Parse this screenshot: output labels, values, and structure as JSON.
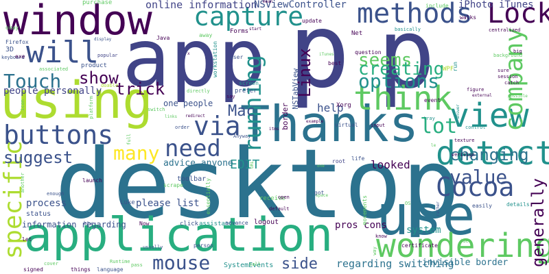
{
  "palette": {
    "dark_purple": "#440154",
    "indigo": "#3b528b",
    "slate_blue": "#414487",
    "teal": "#21918c",
    "dark_teal": "#2c728e",
    "sea_green": "#28ae80",
    "green": "#5ec962",
    "lime": "#addc30",
    "yellow": "#fde725"
  },
  "words": [
    {
      "t": "desktop",
      "c": "#2c728e"
    },
    {
      "t": "p",
      "c": "#414487"
    },
    {
      "t": "p",
      "c": "#414487"
    },
    {
      "t": "app",
      "c": "#414487"
    },
    {
      "t": "using",
      "c": "#addc30"
    },
    {
      "t": "application",
      "c": "#28ae80"
    },
    {
      "t": "window",
      "c": "#440154"
    },
    {
      "t": "Thanks",
      "c": "#2c728e"
    },
    {
      "t": "use",
      "c": "#2c728e"
    },
    {
      "t": "wondering",
      "c": "#5ec962"
    },
    {
      "t": "view",
      "c": "#21918c"
    },
    {
      "t": "detect",
      "c": "#21918c"
    },
    {
      "t": "methods",
      "c": "#3b528b"
    },
    {
      "t": "capture",
      "c": "#21918c"
    },
    {
      "t": "think",
      "c": "#5ec962"
    },
    {
      "t": "buttons",
      "c": "#3b528b"
    },
    {
      "t": "Cocoa",
      "c": "#3b528b"
    },
    {
      "t": "Lock",
      "c": "#440154"
    },
    {
      "t": "will",
      "c": "#3b528b"
    },
    {
      "t": "via",
      "c": "#3b528b"
    },
    {
      "t": "company",
      "c": "#5ec962"
    },
    {
      "t": "specific",
      "c": "#addc30"
    },
    {
      "t": "need",
      "c": "#3b528b"
    },
    {
      "t": "running",
      "c": "#21918c"
    },
    {
      "t": "many",
      "c": "#fde725"
    },
    {
      "t": "mouse",
      "c": "#3b528b"
    },
    {
      "t": "lot",
      "c": "#28ae80"
    },
    {
      "t": "seems",
      "c": "#5ec962"
    },
    {
      "t": "creating",
      "c": "#28ae80"
    },
    {
      "t": "options",
      "c": "#21918c"
    },
    {
      "t": "Touch",
      "c": "#2c728e"
    },
    {
      "t": "show",
      "c": "#440154"
    },
    {
      "t": "value",
      "c": "#3b528b"
    },
    {
      "t": "changing",
      "c": "#2c728e"
    },
    {
      "t": "suggest",
      "c": "#3b528b"
    },
    {
      "t": "trick",
      "c": "#440154"
    },
    {
      "t": "generally",
      "c": "#440154"
    },
    {
      "t": "Linux",
      "c": "#440154"
    },
    {
      "t": "Mac",
      "c": "#3b528b"
    },
    {
      "t": "side",
      "c": "#3b528b"
    },
    {
      "t": "EDIT",
      "c": "#21918c"
    },
    {
      "t": "looked",
      "c": "#440154"
    },
    {
      "t": "help",
      "c": "#3b528b"
    },
    {
      "t": "online information",
      "c": "#414487"
    },
    {
      "t": "NSViewController",
      "c": "#3b528b"
    },
    {
      "t": "iPhoto iTunes",
      "c": "#414487"
    },
    {
      "t": "regarding switching",
      "c": "#2c728e"
    },
    {
      "t": "invisible border",
      "c": "#2c728e"
    },
    {
      "t": "system",
      "c": "#21918c"
    },
    {
      "t": "process",
      "c": "#3b528b"
    },
    {
      "t": "please list",
      "c": "#3b528b"
    },
    {
      "t": "information regarding",
      "c": "#3b528b"
    },
    {
      "t": "pros cons",
      "c": "#440154"
    },
    {
      "t": "people personally",
      "c": "#414487"
    },
    {
      "t": "one people",
      "c": "#3b528b"
    },
    {
      "t": "advice anyone",
      "c": "#2c728e"
    },
    {
      "t": "SystemEvents",
      "c": "#21918c"
    },
    {
      "t": "NSTabView",
      "c": "#3b528b"
    },
    {
      "t": "border",
      "c": "#440154"
    },
    {
      "t": "Xorg",
      "c": "#440154"
    },
    {
      "t": "Luke",
      "c": "#3b528b"
    },
    {
      "t": "toolbar",
      "c": "#3b528b"
    },
    {
      "t": "scrape",
      "c": "#5ec962"
    },
    {
      "t": "logout",
      "c": "#440154"
    },
    {
      "t": "status",
      "c": "#3b528b"
    },
    {
      "t": "product",
      "c": "#3b528b"
    },
    {
      "t": "Forms",
      "c": "#440154"
    },
    {
      "t": "assistance",
      "c": "#21918c"
    },
    {
      "t": "advance",
      "c": "#3b528b"
    },
    {
      "t": "click",
      "c": "#3b528b"
    },
    {
      "t": "receive",
      "c": "#5ec962"
    },
    {
      "t": "WPF",
      "c": "#addc30"
    },
    {
      "t": "Net",
      "c": "#440154"
    },
    {
      "t": "workstation",
      "c": "#21918c"
    },
    {
      "t": "screen",
      "c": "#21918c"
    },
    {
      "t": "prefer",
      "c": "#3b528b"
    },
    {
      "t": "user",
      "c": "#3b528b"
    },
    {
      "t": "Firefox",
      "c": "#3b528b"
    },
    {
      "t": "keyboard",
      "c": "#3b528b"
    },
    {
      "t": "3D",
      "c": "#3b528b"
    },
    {
      "t": "exe",
      "c": "#440154"
    },
    {
      "t": "okay",
      "c": "#5ec962"
    },
    {
      "t": "purchase",
      "c": "#5ec962"
    },
    {
      "t": "update",
      "c": "#440154"
    },
    {
      "t": "walks",
      "c": "#440154"
    },
    {
      "t": "include",
      "c": "#5ec962"
    },
    {
      "t": "centralized",
      "c": "#440154"
    },
    {
      "t": "basically",
      "c": "#21918c"
    },
    {
      "t": "question",
      "c": "#440154"
    },
    {
      "t": "best",
      "c": "#440154"
    },
    {
      "t": "iTunes",
      "c": "#5ec962"
    },
    {
      "t": "sure",
      "c": "#440154"
    },
    {
      "t": "session",
      "c": "#440154"
    },
    {
      "t": "catch",
      "c": "#440154"
    },
    {
      "t": "figure",
      "c": "#440154"
    },
    {
      "t": "external",
      "c": "#440154"
    },
    {
      "t": "possible",
      "c": "#5ec962"
    },
    {
      "t": "answer",
      "c": "#21918c"
    },
    {
      "t": "event",
      "c": "#440154"
    },
    {
      "t": "tray",
      "c": "#21918c"
    },
    {
      "t": "control",
      "c": "#21918c"
    },
    {
      "t": "texture",
      "c": "#440154"
    },
    {
      "t": "verisign",
      "c": "#440154"
    },
    {
      "t": "details",
      "c": "#21918c"
    },
    {
      "t": "easily",
      "c": "#3b528b"
    },
    {
      "t": "life",
      "c": "#3b528b"
    },
    {
      "t": "root",
      "c": "#414487"
    },
    {
      "t": "virtual",
      "c": "#3b528b"
    },
    {
      "t": "input",
      "c": "#440154"
    },
    {
      "t": "example",
      "c": "#440154"
    },
    {
      "t": "itms",
      "c": "#440154"
    },
    {
      "t": "got",
      "c": "#3b528b"
    },
    {
      "t": "open",
      "c": "#440154"
    },
    {
      "t": "default",
      "c": "#440154"
    },
    {
      "t": "know",
      "c": "#440154"
    },
    {
      "t": "certificate",
      "c": "#440154"
    },
    {
      "t": "idea",
      "c": "#5ec962"
    },
    {
      "t": "things",
      "c": "#440154"
    },
    {
      "t": "language",
      "c": "#3b528b"
    },
    {
      "t": "Runtime",
      "c": "#5ec962"
    },
    {
      "t": "pass",
      "c": "#5ec962"
    },
    {
      "t": "signed",
      "c": "#440154"
    },
    {
      "t": "cover",
      "c": "#5ec962"
    },
    {
      "t": "btw",
      "c": "#3b528b"
    },
    {
      "t": "enough",
      "c": "#3b528b"
    },
    {
      "t": "launch",
      "c": "#440154"
    },
    {
      "t": "let",
      "c": "#440154"
    },
    {
      "t": "Now",
      "c": "#440154"
    },
    {
      "t": "person",
      "c": "#3b528b"
    },
    {
      "t": "usually",
      "c": "#3b528b"
    },
    {
      "t": "Anyway",
      "c": "#3b528b"
    },
    {
      "t": "order",
      "c": "#3b528b"
    },
    {
      "t": "redirect",
      "c": "#440154"
    },
    {
      "t": "switch",
      "c": "#5ec962"
    },
    {
      "t": "directly",
      "c": "#5ec962"
    },
    {
      "t": "say",
      "c": "#440154"
    },
    {
      "t": "associated",
      "c": "#5ec962"
    },
    {
      "t": "popular",
      "c": "#414487"
    },
    {
      "t": "doable",
      "c": "#addc30"
    },
    {
      "t": "display",
      "c": "#3b528b"
    },
    {
      "t": "Java",
      "c": "#440154"
    },
    {
      "t": "away",
      "c": "#5ec962"
    },
    {
      "t": "start",
      "c": "#440154"
    },
    {
      "t": "mean",
      "c": "#440154"
    },
    {
      "t": "big",
      "c": "#440154"
    },
    {
      "t": "background",
      "c": "#5ec962"
    },
    {
      "t": "run",
      "c": "#21918c"
    },
    {
      "t": "x",
      "c": "#440154"
    },
    {
      "t": "icon",
      "c": "#5ec962"
    },
    {
      "t": "platform",
      "c": "#5ec962"
    },
    {
      "t": "full",
      "c": "#5ec962"
    },
    {
      "t": "another",
      "c": "#5ec962"
    },
    {
      "t": "one",
      "c": "#5ec962"
    },
    {
      "t": "space",
      "c": "#5ec962"
    },
    {
      "t": "way",
      "c": "#5ec962"
    },
    {
      "t": "OS",
      "c": "#5ec962"
    },
    {
      "t": "rather",
      "c": "#3b528b"
    },
    {
      "t": "movements",
      "c": "#5ec962"
    },
    {
      "t": "essentially",
      "c": "#5ec962"
    },
    {
      "t": "links",
      "c": "#5ec962"
    },
    {
      "t": "URL",
      "c": "#5ec962"
    },
    {
      "t": "call",
      "c": "#5ec962"
    },
    {
      "t": "le",
      "c": "#5ec962"
    }
  ]
}
